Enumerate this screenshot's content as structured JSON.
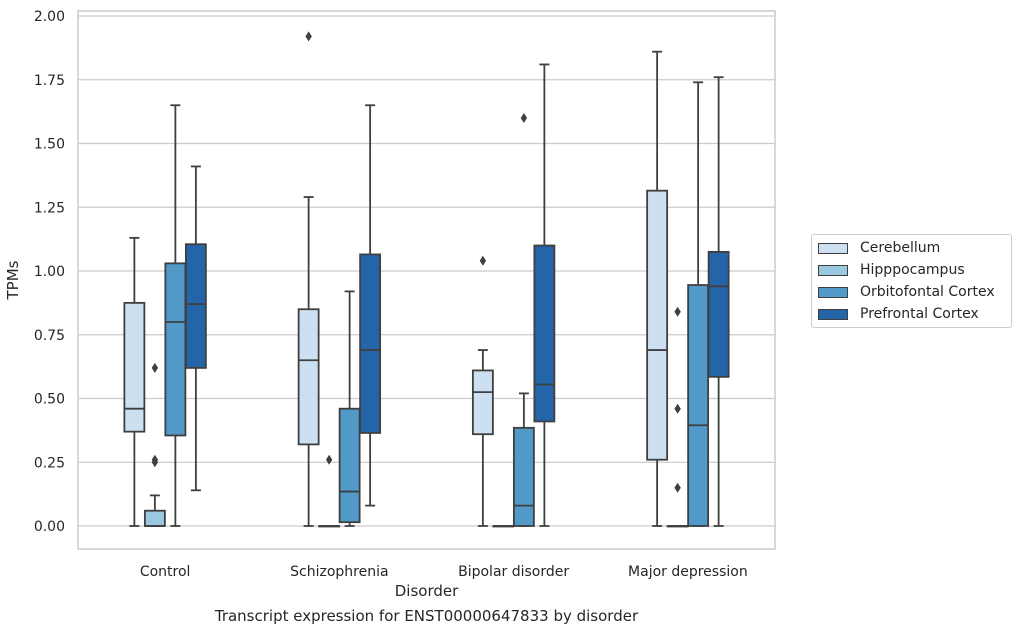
{
  "chart_data": {
    "type": "box",
    "title": "Transcript expression for ENST00000647833 by disorder",
    "xlabel": "Disorder",
    "ylabel": "TPMs",
    "categories": [
      "Control",
      "Schizophrenia",
      "Bipolar disorder",
      "Major depression"
    ],
    "ylim": [
      -0.09,
      2.02
    ],
    "yticks": [
      0.0,
      0.25,
      0.5,
      0.75,
      1.0,
      1.25,
      1.5,
      1.75,
      2.0
    ],
    "ytick_labels": [
      "0.00",
      "0.25",
      "0.50",
      "0.75",
      "1.00",
      "1.25",
      "1.50",
      "1.75",
      "2.00"
    ],
    "grid": true,
    "legend_position": "right",
    "series": [
      {
        "name": "Cerebellum",
        "color": "#cde0f1",
        "boxes": [
          {
            "whislo": 0.0,
            "q1": 0.37,
            "med": 0.46,
            "q3": 0.875,
            "whishi": 1.13,
            "fliers": []
          },
          {
            "whislo": 0.0,
            "q1": 0.32,
            "med": 0.65,
            "q3": 0.85,
            "whishi": 1.29,
            "fliers": [
              1.92
            ]
          },
          {
            "whislo": 0.0,
            "q1": 0.36,
            "med": 0.525,
            "q3": 0.61,
            "whishi": 0.69,
            "fliers": [
              1.04
            ]
          },
          {
            "whislo": 0.0,
            "q1": 0.26,
            "med": 0.69,
            "q3": 1.315,
            "whishi": 1.86,
            "fliers": []
          }
        ]
      },
      {
        "name": "Hipppocampus",
        "color": "#9ac8e0",
        "boxes": [
          {
            "whislo": 0.0,
            "q1": 0.0,
            "med": 0.0,
            "q3": 0.06,
            "whishi": 0.12,
            "fliers": [
              0.62,
              0.26,
              0.25
            ]
          },
          {
            "whislo": 0.0,
            "q1": 0.0,
            "med": 0.0,
            "q3": 0.0,
            "whishi": 0.0,
            "fliers": [
              0.26
            ]
          },
          {
            "whislo": 0.0,
            "q1": 0.0,
            "med": 0.0,
            "q3": 0.0,
            "whishi": 0.0,
            "fliers": []
          },
          {
            "whislo": 0.0,
            "q1": 0.0,
            "med": 0.0,
            "q3": 0.0,
            "whishi": 0.0,
            "fliers": [
              0.84,
              0.46,
              0.15
            ]
          }
        ]
      },
      {
        "name": "Orbitofontal Cortex",
        "color": "#5099c8",
        "boxes": [
          {
            "whislo": 0.0,
            "q1": 0.355,
            "med": 0.8,
            "q3": 1.03,
            "whishi": 1.65,
            "fliers": []
          },
          {
            "whislo": 0.0,
            "q1": 0.015,
            "med": 0.135,
            "q3": 0.46,
            "whishi": 0.92,
            "fliers": []
          },
          {
            "whislo": 0.0,
            "q1": 0.0,
            "med": 0.08,
            "q3": 0.385,
            "whishi": 0.52,
            "fliers": [
              1.6
            ]
          },
          {
            "whislo": 0.0,
            "q1": 0.0,
            "med": 0.395,
            "q3": 0.945,
            "whishi": 1.74,
            "fliers": []
          }
        ]
      },
      {
        "name": "Prefrontal Cortex",
        "color": "#2464a8",
        "boxes": [
          {
            "whislo": 0.14,
            "q1": 0.62,
            "med": 0.87,
            "q3": 1.105,
            "whishi": 1.41,
            "fliers": []
          },
          {
            "whislo": 0.08,
            "q1": 0.365,
            "med": 0.69,
            "q3": 1.065,
            "whishi": 1.65,
            "fliers": []
          },
          {
            "whislo": 0.0,
            "q1": 0.41,
            "med": 0.555,
            "q3": 1.1,
            "whishi": 1.81,
            "fliers": []
          },
          {
            "whislo": 0.0,
            "q1": 0.585,
            "med": 0.94,
            "q3": 1.075,
            "whishi": 1.76,
            "fliers": []
          }
        ]
      }
    ]
  }
}
